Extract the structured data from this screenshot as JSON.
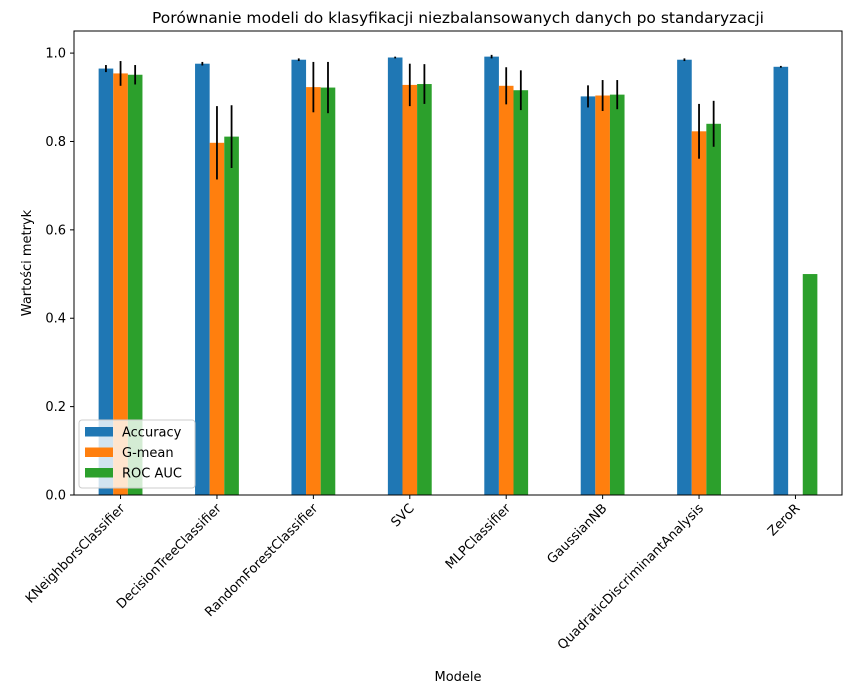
{
  "chart_data": {
    "type": "bar",
    "title": "Porównanie modeli do klasyfikacji niezbalansowanych danych po standaryzacji",
    "xlabel": "Modele",
    "ylabel": "Wartości metryk",
    "ylim": [
      0,
      1.05
    ],
    "yticks": [
      "0.0",
      "0.2",
      "0.4",
      "0.6",
      "0.8",
      "1.0"
    ],
    "ytick_values": [
      0.0,
      0.2,
      0.4,
      0.6,
      0.8,
      1.0
    ],
    "grid": false,
    "legend_position": "lower-left",
    "categories": [
      "KNeighborsClassifier",
      "DecisionTreeClassifier",
      "RandomForestClassifier",
      "SVC",
      "MLPClassifier",
      "GaussianNB",
      "QuadraticDiscriminantAnalysis",
      "ZeroR"
    ],
    "series": [
      {
        "name": "Accuracy",
        "color": "#1f77b4",
        "values": [
          0.965,
          0.976,
          0.985,
          0.99,
          0.992,
          0.902,
          0.985,
          0.969
        ],
        "errors": [
          0.008,
          0.004,
          0.003,
          0.002,
          0.004,
          0.025,
          0.003,
          0.002
        ]
      },
      {
        "name": "G-mean",
        "color": "#ff7f0e",
        "values": [
          0.954,
          0.797,
          0.923,
          0.928,
          0.926,
          0.904,
          0.823,
          0.0
        ],
        "errors": [
          0.028,
          0.083,
          0.057,
          0.048,
          0.042,
          0.035,
          0.062,
          0.0
        ]
      },
      {
        "name": "ROC AUC",
        "color": "#2ca02c",
        "values": [
          0.951,
          0.811,
          0.922,
          0.93,
          0.916,
          0.906,
          0.84,
          0.5
        ],
        "errors": [
          0.022,
          0.071,
          0.058,
          0.045,
          0.045,
          0.033,
          0.052,
          0.0
        ]
      }
    ]
  }
}
